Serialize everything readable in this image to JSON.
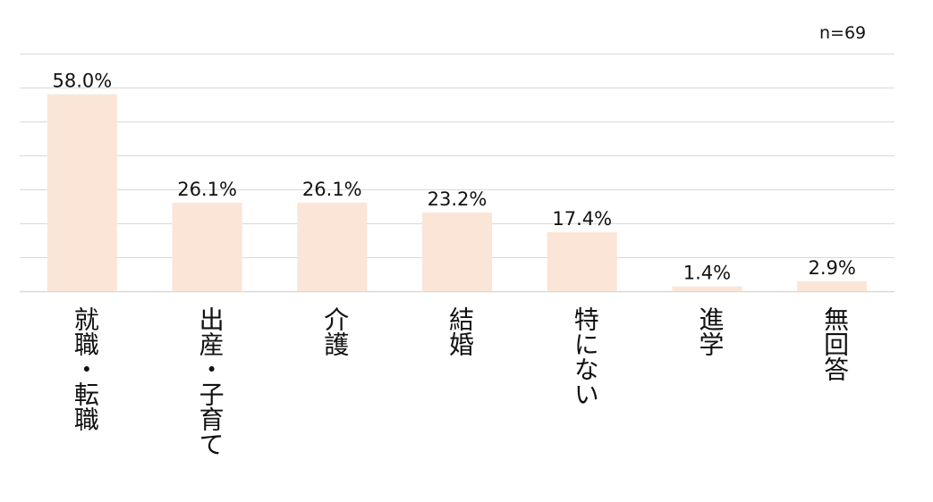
{
  "chart_data": {
    "type": "bar",
    "categories": [
      "就職・転職",
      "出産・子育て",
      "介護",
      "結婚",
      "特にない",
      "進学",
      "無回答"
    ],
    "values": [
      58.0,
      26.1,
      26.1,
      23.2,
      17.4,
      1.4,
      2.9
    ],
    "value_labels": [
      "58.0%",
      "26.1%",
      "26.1%",
      "23.2%",
      "17.4%",
      "1.4%",
      "2.9%"
    ],
    "annotation": "n=69",
    "ylim": [
      0,
      70
    ],
    "grid": true,
    "bar_color": "#fbe5d6",
    "grid_color": "#d9d9d9"
  }
}
